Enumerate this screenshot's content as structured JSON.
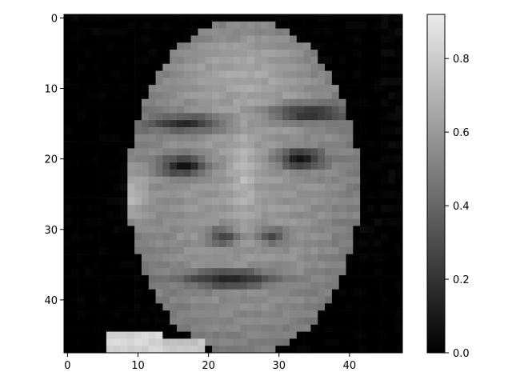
{
  "image": {
    "kind": "grayscale-face-heatmap",
    "colormap": "gray",
    "grid": {
      "rows": 48,
      "cols": 48
    },
    "x_ticks": [
      "0",
      "10",
      "20",
      "30",
      "40"
    ],
    "y_ticks": [
      "0",
      "10",
      "20",
      "30",
      "40"
    ],
    "colorbar_ticks": [
      "0.0",
      "0.2",
      "0.4",
      "0.6",
      "0.8"
    ],
    "value_range": [
      0.0,
      0.92
    ]
  },
  "colors": {
    "low": "#000000",
    "high": "#ffffff",
    "axis": "#000000"
  }
}
